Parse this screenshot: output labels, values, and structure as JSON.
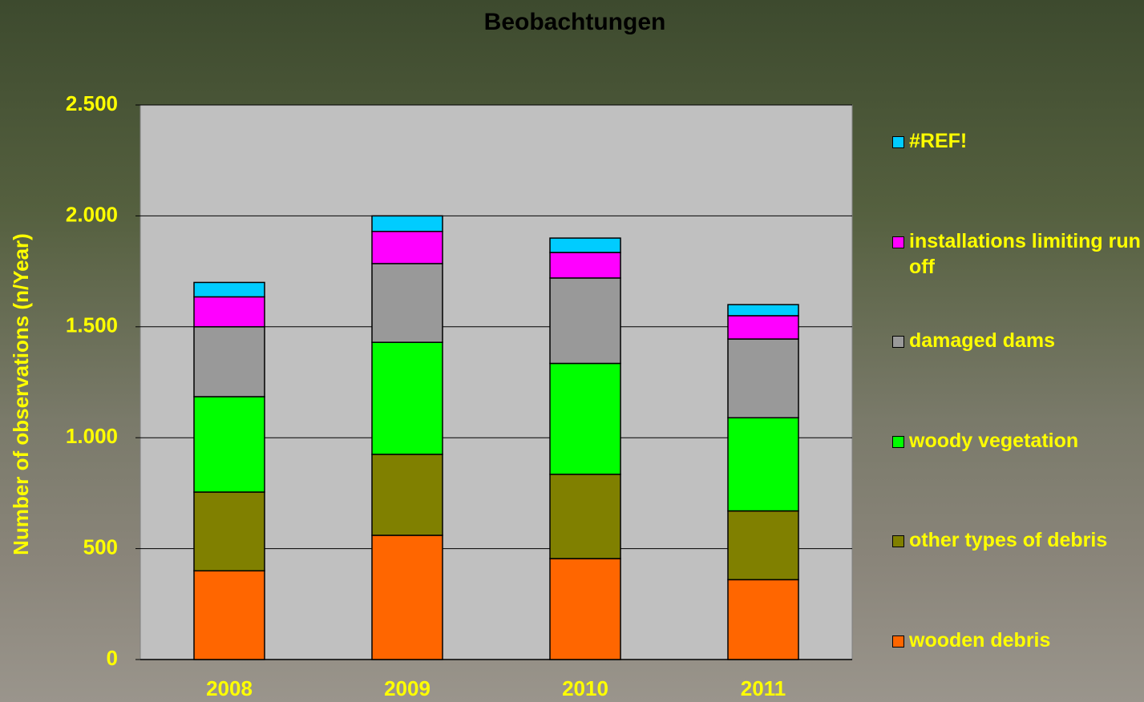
{
  "chart_data": {
    "type": "stacked_bar",
    "title": "Beobachtungen",
    "y_label": "Number of observations (n/Year)",
    "categories": [
      "2008",
      "2009",
      "2010",
      "2011"
    ],
    "series": [
      {
        "name": "wooden debris",
        "color": "#ff6600",
        "values": [
          400,
          560,
          455,
          360
        ]
      },
      {
        "name": "other types of debris",
        "color": "#808000",
        "values": [
          355,
          365,
          380,
          310
        ]
      },
      {
        "name": "woody vegetation",
        "color": "#00ff00",
        "values": [
          430,
          505,
          500,
          420
        ]
      },
      {
        "name": "damaged dams",
        "color": "#999999",
        "values": [
          315,
          355,
          385,
          355
        ]
      },
      {
        "name": "installations limiting run off",
        "color": "#ff00ff",
        "values": [
          135,
          145,
          115,
          105
        ]
      },
      {
        "name": "#REF!",
        "color": "#00ccff",
        "values": [
          65,
          70,
          65,
          50
        ]
      }
    ],
    "ylim": [
      0,
      2500
    ],
    "yticks": [
      0,
      500,
      {
        "value": 1000,
        "label": "1.000"
      },
      {
        "value": 1500,
        "label": "1.500"
      },
      {
        "value": 2000,
        "label": "2.000"
      },
      {
        "value": 2500,
        "label": "2.500"
      }
    ],
    "grid": true
  }
}
